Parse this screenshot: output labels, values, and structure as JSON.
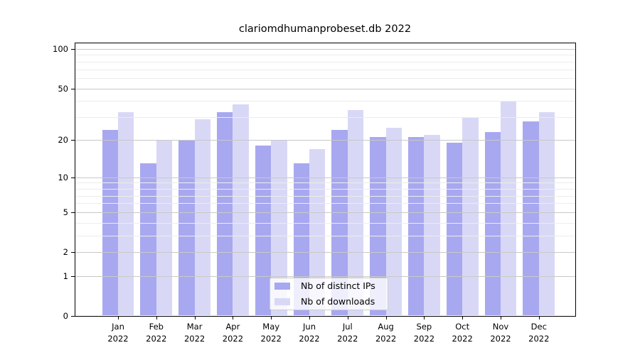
{
  "title": "clariomdhumanprobeset.db 2022",
  "colors": {
    "distinct_ips": "#a8a8f0",
    "downloads": "#d8d8f6",
    "grid_major": "#c8c8c8",
    "grid_minor": "#ececec",
    "frame": "#000000",
    "legend_border": "#cccccc"
  },
  "legend": {
    "items": [
      {
        "key": "distinct_ips",
        "label": "Nb of distinct IPs"
      },
      {
        "key": "downloads",
        "label": "Nb of downloads"
      }
    ]
  },
  "y_axis": {
    "scale": "log1p",
    "tick_values": [
      0,
      1,
      2,
      5,
      10,
      20,
      50,
      100
    ],
    "tick_labels": [
      "0",
      "1",
      "2",
      "5",
      "10",
      "20",
      "50",
      "100"
    ],
    "minor_grid_values": [
      3,
      4,
      6,
      7,
      8,
      9,
      30,
      40,
      60,
      70,
      80,
      90
    ]
  },
  "x_axis": {
    "months": [
      "Jan",
      "Feb",
      "Mar",
      "Apr",
      "May",
      "Jun",
      "Jul",
      "Aug",
      "Sep",
      "Oct",
      "Nov",
      "Dec"
    ],
    "year": "2022"
  },
  "chart_data": {
    "type": "bar",
    "title": "clariomdhumanprobeset.db 2022",
    "categories": [
      "Jan 2022",
      "Feb 2022",
      "Mar 2022",
      "Apr 2022",
      "May 2022",
      "Jun 2022",
      "Jul 2022",
      "Aug 2022",
      "Sep 2022",
      "Oct 2022",
      "Nov 2022",
      "Dec 2022"
    ],
    "series": [
      {
        "name": "Nb of distinct IPs",
        "color": "#a8a8f0",
        "values": [
          24,
          13,
          20,
          33,
          18,
          13,
          24,
          21,
          21,
          19,
          23,
          28
        ]
      },
      {
        "name": "Nb of downloads",
        "color": "#d8d8f6",
        "values": [
          33,
          20,
          29,
          38,
          20,
          17,
          34,
          25,
          22,
          30,
          40,
          33
        ]
      }
    ],
    "xlabel": "",
    "ylabel": "",
    "y_scale": "log1p",
    "y_ticks": [
      0,
      1,
      2,
      5,
      10,
      20,
      50,
      100
    ],
    "ylim": [
      0,
      113
    ],
    "grid": true,
    "legend_position": "inside-bottom-center"
  }
}
